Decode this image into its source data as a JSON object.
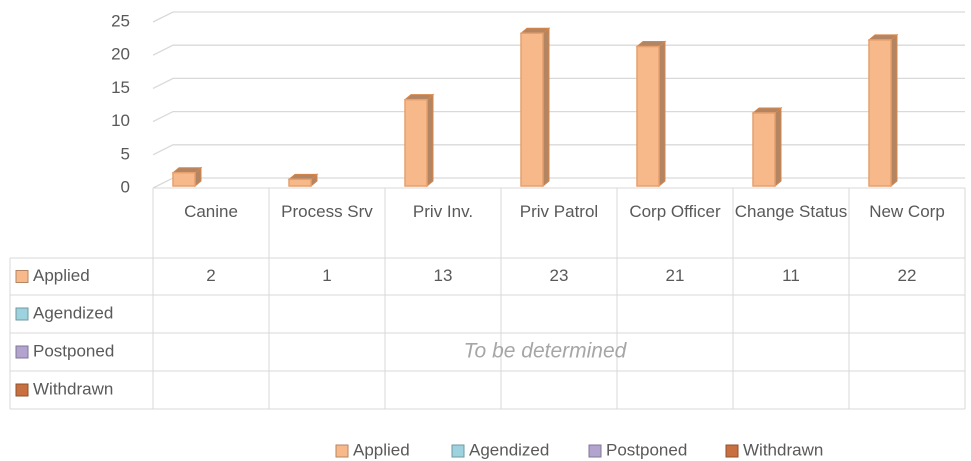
{
  "chart_data": {
    "type": "bar3d",
    "categories": [
      "Canine",
      "Process Srv",
      "Priv Inv.",
      "Priv Patrol",
      "Corp Officer",
      "Change Status",
      "New Corp"
    ],
    "series": [
      {
        "name": "Applied",
        "color": "#f8b98a",
        "values": [
          2,
          1,
          13,
          23,
          21,
          11,
          22
        ]
      },
      {
        "name": "Agendized",
        "color": "#9dd3df",
        "values": [
          null,
          null,
          null,
          null,
          null,
          null,
          null
        ]
      },
      {
        "name": "Postponed",
        "color": "#b3a4cf",
        "values": [
          null,
          null,
          null,
          null,
          null,
          null,
          null
        ]
      },
      {
        "name": "Withdrawn",
        "color": "#c8703f",
        "values": [
          null,
          null,
          null,
          null,
          null,
          null,
          null
        ]
      }
    ],
    "ylim": [
      0,
      25
    ],
    "yticks": [
      0,
      5,
      10,
      15,
      20,
      25
    ],
    "grid": true,
    "annotation": "To be determined",
    "legend": "bottom",
    "data_table": true
  }
}
